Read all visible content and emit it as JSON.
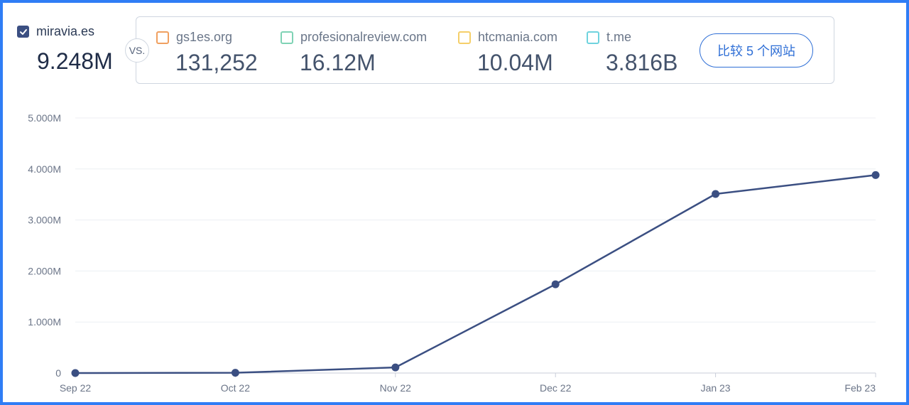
{
  "main_site": {
    "name": "miravia.es",
    "value": "9.248M",
    "checked": true,
    "color": "#3b4f82"
  },
  "vs_label": "VS.",
  "competitors": [
    {
      "name": "gs1es.org",
      "value": "131,252",
      "color": "#f0a060"
    },
    {
      "name": "profesionalreview.com",
      "value": "16.12M",
      "color": "#7fd3b5"
    },
    {
      "name": "htcmania.com",
      "value": "10.04M",
      "color": "#f5cf6a"
    },
    {
      "name": "t.me",
      "value": "3.816B",
      "color": "#6fd3de"
    }
  ],
  "compare_button_label": "比较 5 个网站",
  "chart_data": {
    "type": "line",
    "categories": [
      "Sep 22",
      "Oct 22",
      "Nov 22",
      "Dec 22",
      "Jan 23",
      "Feb 23"
    ],
    "series": [
      {
        "name": "miravia.es",
        "values": [
          0,
          5000,
          110000,
          1740000,
          3510000,
          3880000
        ],
        "color": "#3b4f82"
      }
    ],
    "y_ticks": [
      0,
      1000000,
      2000000,
      3000000,
      4000000,
      5000000
    ],
    "y_tick_labels": [
      "0",
      "1.000M",
      "2.000M",
      "3.000M",
      "4.000M",
      "5.000M"
    ],
    "ylim": [
      0,
      5000000
    ],
    "grid": true,
    "title": "",
    "xlabel": "",
    "ylabel": ""
  }
}
